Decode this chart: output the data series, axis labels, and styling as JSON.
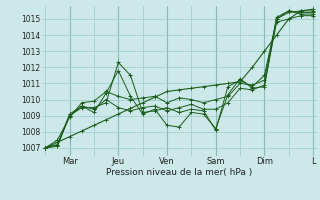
{
  "xlabel": "Pression niveau de la mer( hPa )",
  "bg_color": "#cce8e8",
  "grid_color": "#99cccc",
  "line_color": "#1a5c1a",
  "ylim": [
    1006.5,
    1015.8
  ],
  "yticks": [
    1007,
    1008,
    1009,
    1010,
    1011,
    1012,
    1013,
    1014,
    1015
  ],
  "xtick_labels": [
    "",
    "Mar",
    "",
    "Jeu",
    "",
    "Ven",
    "",
    "Sam",
    "",
    "Dim",
    "",
    "L"
  ],
  "xtick_positions": [
    0,
    2,
    4,
    6,
    8,
    10,
    12,
    14,
    16,
    18,
    20,
    22
  ],
  "num_points": 23,
  "series": [
    [
      1007.0,
      1007.1,
      1009.0,
      1009.5,
      1009.5,
      1009.8,
      1012.3,
      1011.5,
      1009.2,
      1009.3,
      1009.5,
      1009.2,
      1009.4,
      1009.3,
      1008.1,
      1010.8,
      1011.2,
      1010.8,
      1011.5,
      1015.0,
      1015.5,
      1015.3,
      1015.3
    ],
    [
      1007.0,
      1007.2,
      1009.0,
      1009.6,
      1009.2,
      1010.4,
      1011.8,
      1010.2,
      1009.1,
      1009.4,
      1008.4,
      1008.3,
      1009.2,
      1009.1,
      1008.2,
      1010.3,
      1011.3,
      1010.7,
      1010.8,
      1015.1,
      1015.5,
      1015.4,
      1015.4
    ],
    [
      1007.0,
      1007.2,
      1009.1,
      1009.6,
      1009.4,
      1010.0,
      1009.5,
      1009.3,
      1009.5,
      1009.6,
      1009.3,
      1009.5,
      1009.7,
      1009.4,
      1009.4,
      1009.8,
      1010.7,
      1010.6,
      1010.9,
      1014.8,
      1015.0,
      1015.2,
      1015.2
    ],
    [
      1007.0,
      1007.5,
      1008.9,
      1009.8,
      1009.9,
      1010.5,
      1010.2,
      1010.0,
      1010.1,
      1010.2,
      1009.8,
      1010.1,
      1010.0,
      1009.8,
      1010.0,
      1010.2,
      1011.0,
      1010.9,
      1011.2,
      1015.0,
      1015.4,
      1015.5,
      1015.5
    ]
  ],
  "trend": [
    1007.0,
    1007.35,
    1007.7,
    1008.05,
    1008.4,
    1008.75,
    1009.1,
    1009.45,
    1009.8,
    1010.15,
    1010.5,
    1010.6,
    1010.7,
    1010.8,
    1010.9,
    1011.0,
    1011.1,
    1012.0,
    1013.0,
    1014.0,
    1015.0,
    1015.5,
    1015.6
  ]
}
